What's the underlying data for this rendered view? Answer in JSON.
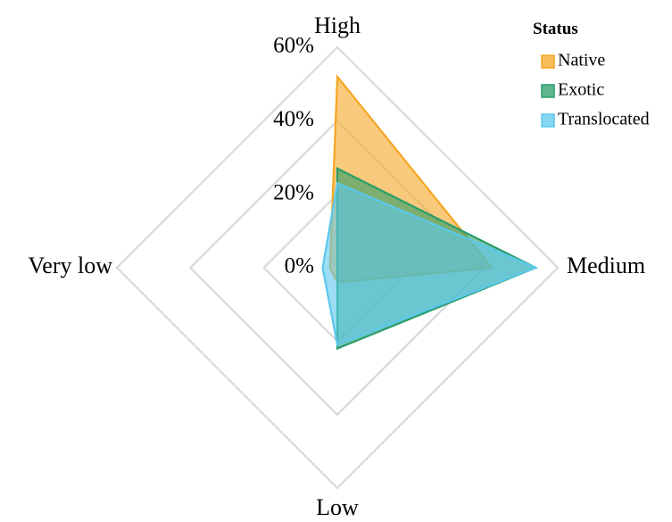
{
  "chart_data": {
    "type": "radar",
    "title": "",
    "categories": [
      "High",
      "Medium",
      "Low",
      "Very low"
    ],
    "rlim": [
      0,
      60
    ],
    "ticks": [
      "0%",
      "20%",
      "40%",
      "60%"
    ],
    "tick_values": [
      0,
      20,
      40,
      60
    ],
    "grid": true,
    "legend": {
      "title": "Status",
      "position": "top-right"
    },
    "series": [
      {
        "name": "Native",
        "values": [
          52,
          42,
          4,
          2
        ],
        "color": "#f5a623"
      },
      {
        "name": "Exotic",
        "values": [
          27,
          54,
          22,
          0
        ],
        "color": "#2a9d6b"
      },
      {
        "name": "Translocated",
        "values": [
          23,
          54,
          21,
          4
        ],
        "color": "#5bc8ec"
      }
    ]
  }
}
